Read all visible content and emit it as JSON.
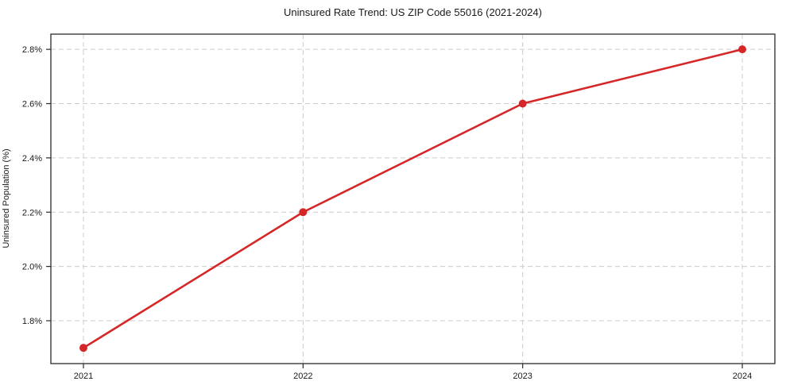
{
  "title": "Uninsured Rate Trend: US ZIP Code 55016 (2021-2024)",
  "chart_data": {
    "type": "line",
    "title": "Uninsured Rate Trend: US ZIP Code 55016 (2021-2024)",
    "xlabel": "",
    "ylabel": "Uninsured Population (%)",
    "categories": [
      "2021",
      "2022",
      "2023",
      "2024"
    ],
    "series": [
      {
        "name": "Uninsured Population (%)",
        "values": [
          1.7,
          2.2,
          2.6,
          2.8
        ]
      }
    ],
    "yticks": [
      1.8,
      2.0,
      2.2,
      2.4,
      2.6,
      2.8
    ],
    "ytick_labels": [
      "1.8%",
      "2.0%",
      "2.2%",
      "2.4%",
      "2.6%",
      "2.8%"
    ],
    "ylim": [
      1.642,
      2.856
    ],
    "grid": true,
    "grid_style": "dashed",
    "legend_position": "none",
    "colors": {
      "line": "#d62728",
      "marker": "#d62728",
      "grid": "#cccccc",
      "spine": "#2b2b2b",
      "tick": "#2b2b2b",
      "text": "#1a1a1a",
      "background": "#ffffff"
    }
  }
}
